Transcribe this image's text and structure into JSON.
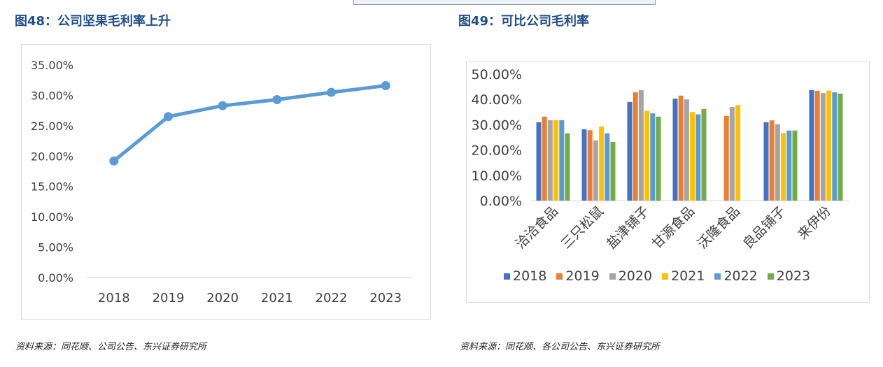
{
  "left": {
    "title": "图48：公司坚果毛利率上升",
    "source": "资料来源：同花顺、公司公告、东兴证券研究所"
  },
  "right": {
    "title": "图49：可比公司毛利率",
    "source": "资料来源：同花顺、各公司公告、东兴证券研究所"
  },
  "chart_data": [
    {
      "type": "line",
      "title": "",
      "xlabel": "",
      "ylabel": "",
      "x": [
        "2018",
        "2019",
        "2020",
        "2021",
        "2022",
        "2023"
      ],
      "values": [
        0.192,
        0.265,
        0.283,
        0.293,
        0.305,
        0.316
      ],
      "ylim": [
        0,
        0.35
      ],
      "yticks": [
        "0.00%",
        "5.00%",
        "10.00%",
        "15.00%",
        "20.00%",
        "25.00%",
        "30.00%",
        "35.00%"
      ],
      "color": "#5b9bd5",
      "grid": false
    },
    {
      "type": "bar",
      "title": "",
      "xlabel": "",
      "ylabel": "",
      "categories": [
        "洽洽食品",
        "三只松鼠",
        "盐津铺子",
        "甘源食品",
        "沃隆食品",
        "良品铺子",
        "来伊份"
      ],
      "ylim": [
        0,
        0.5
      ],
      "yticks": [
        "0.00%",
        "10.00%",
        "20.00%",
        "30.00%",
        "40.00%",
        "50.00%"
      ],
      "legend_position": "bottom",
      "grid": false,
      "series": [
        {
          "name": "2018",
          "color": "#4472c4",
          "values": [
            0.31,
            0.282,
            0.39,
            0.403,
            null,
            0.31,
            0.437
          ]
        },
        {
          "name": "2019",
          "color": "#ed7d31",
          "values": [
            0.332,
            0.278,
            0.428,
            0.415,
            0.335,
            0.317,
            0.434
          ]
        },
        {
          "name": "2020",
          "color": "#a5a5a5",
          "values": [
            0.318,
            0.238,
            0.437,
            0.4,
            0.37,
            0.302,
            0.425
          ]
        },
        {
          "name": "2021",
          "color": "#ffc000",
          "values": [
            0.318,
            0.293,
            0.355,
            0.35,
            0.378,
            0.267,
            0.435
          ]
        },
        {
          "name": "2022",
          "color": "#5b9bd5",
          "values": [
            0.318,
            0.266,
            0.345,
            0.341,
            null,
            0.277,
            0.428
          ]
        },
        {
          "name": "2023",
          "color": "#70ad47",
          "values": [
            0.266,
            0.232,
            0.332,
            0.362,
            null,
            0.277,
            0.423
          ]
        }
      ]
    }
  ]
}
